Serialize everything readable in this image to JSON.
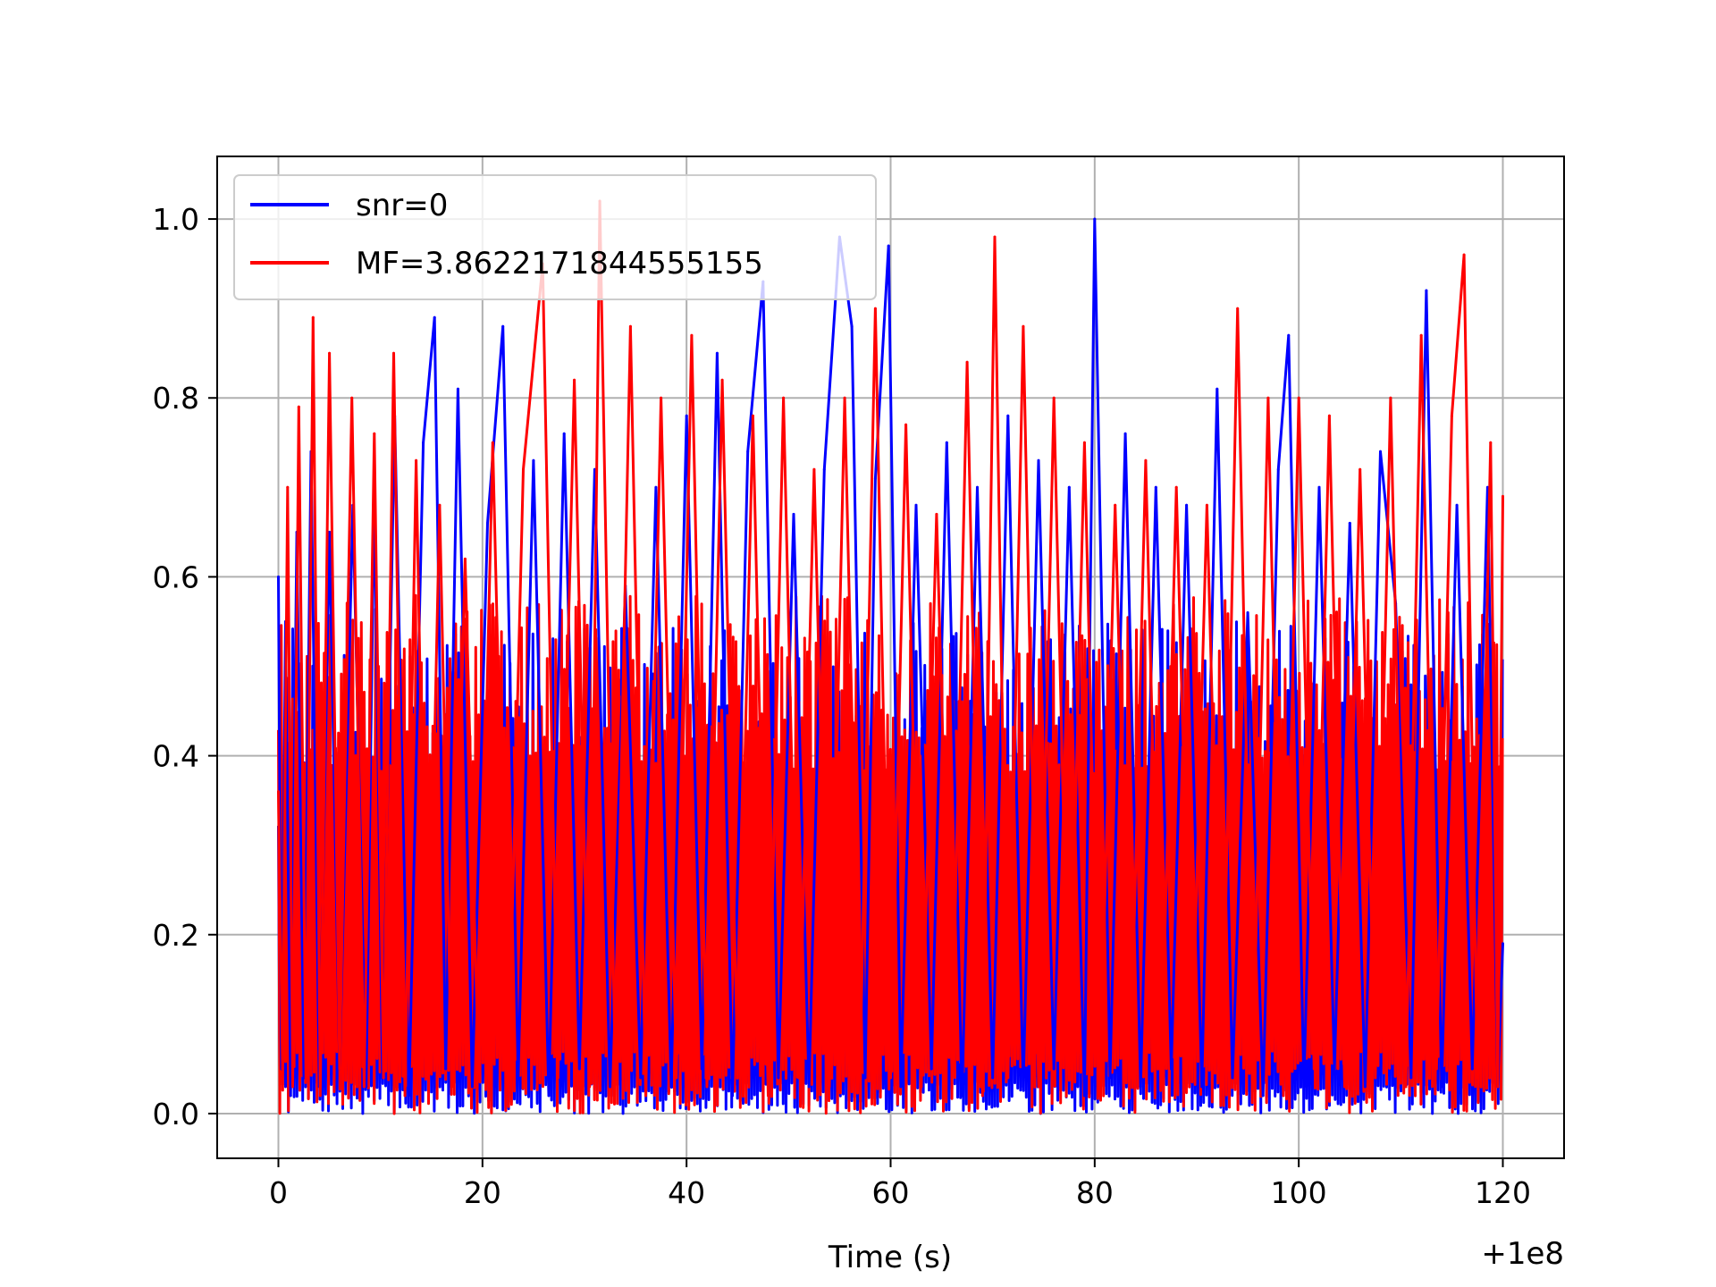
{
  "chart_data": {
    "type": "line",
    "title": "",
    "xlabel": "Time (s)",
    "ylabel": "",
    "x_offset_label": "+1e8",
    "xlim": [
      -6,
      126
    ],
    "ylim": [
      -0.05,
      1.07
    ],
    "xticks": [
      {
        "value": 0,
        "label": "0"
      },
      {
        "value": 20,
        "label": "20"
      },
      {
        "value": 40,
        "label": "40"
      },
      {
        "value": 60,
        "label": "60"
      },
      {
        "value": 80,
        "label": "80"
      },
      {
        "value": 100,
        "label": "100"
      },
      {
        "value": 120,
        "label": "120"
      }
    ],
    "yticks": [
      {
        "value": 0.0,
        "label": "0.0"
      },
      {
        "value": 0.2,
        "label": "0.2"
      },
      {
        "value": 0.4,
        "label": "0.4"
      },
      {
        "value": 0.6,
        "label": "0.6"
      },
      {
        "value": 0.8,
        "label": "0.8"
      },
      {
        "value": 1.0,
        "label": "1.0"
      }
    ],
    "grid": true,
    "legend_position": "top-left",
    "series": [
      {
        "name": "snr=0",
        "color": "#0000ff",
        "x": [
          0,
          0.3,
          0.7,
          1.2,
          1.8,
          2.5,
          3.2,
          4.0,
          5.0,
          6.0,
          7.3,
          8.6,
          9.4,
          10.2,
          11.4,
          12.8,
          14.2,
          15.3,
          16.4,
          17.6,
          19.0,
          20.5,
          22.0,
          23.5,
          25.0,
          26.5,
          28.0,
          29.5,
          31.0,
          32.5,
          34.0,
          35.5,
          37.0,
          38.5,
          40.0,
          41.5,
          43.0,
          44.5,
          46.0,
          47.5,
          49.0,
          50.5,
          52.0,
          53.5,
          55.0,
          56.2,
          57.5,
          58.5,
          59.8,
          61.0,
          62.5,
          64.0,
          65.5,
          67.0,
          68.5,
          70.0,
          71.5,
          73.0,
          74.5,
          76.0,
          77.5,
          79.0,
          80.0,
          81.5,
          83.0,
          84.5,
          86.0,
          87.5,
          89.0,
          90.5,
          92.0,
          93.5,
          95.0,
          96.5,
          98.0,
          99.0,
          100.5,
          102.0,
          103.5,
          105.0,
          106.5,
          108.0,
          109.5,
          111.0,
          112.5,
          114.0,
          115.5,
          117.0,
          118.5,
          119.5,
          120.0
        ],
        "y": [
          0.6,
          0.05,
          0.55,
          0.02,
          0.65,
          0.04,
          0.74,
          0.03,
          0.65,
          0.05,
          0.68,
          0.03,
          0.7,
          0.04,
          0.78,
          0.02,
          0.75,
          0.89,
          0.05,
          0.81,
          0.03,
          0.66,
          0.88,
          0.04,
          0.73,
          0.02,
          0.76,
          0.05,
          0.72,
          0.03,
          0.59,
          0.04,
          0.7,
          0.03,
          0.78,
          0.05,
          0.85,
          0.02,
          0.74,
          0.93,
          0.04,
          0.67,
          0.03,
          0.72,
          0.98,
          0.88,
          0.04,
          0.71,
          0.97,
          0.03,
          0.68,
          0.05,
          0.75,
          0.02,
          0.7,
          0.04,
          0.78,
          0.03,
          0.73,
          0.05,
          0.7,
          0.02,
          1.0,
          0.04,
          0.76,
          0.03,
          0.7,
          0.05,
          0.68,
          0.03,
          0.81,
          0.04,
          0.56,
          0.02,
          0.72,
          0.87,
          0.03,
          0.7,
          0.05,
          0.66,
          0.03,
          0.74,
          0.57,
          0.04,
          0.92,
          0.03,
          0.68,
          0.05,
          0.7,
          0.03,
          0.19
        ]
      },
      {
        "name": "MF=3.8622171844555155",
        "color": "#ff0000",
        "x": [
          0,
          0.4,
          0.9,
          1.4,
          2.0,
          2.7,
          3.4,
          4.1,
          5.0,
          6.0,
          7.2,
          8.4,
          9.4,
          10.3,
          11.3,
          12.4,
          13.5,
          14.6,
          15.8,
          17.0,
          18.3,
          19.6,
          21.0,
          22.5,
          24.0,
          25.9,
          27.4,
          29.0,
          30.5,
          31.5,
          33.0,
          34.5,
          36.0,
          37.5,
          39.0,
          40.5,
          42.0,
          43.5,
          45.0,
          46.5,
          48.0,
          49.5,
          51.0,
          52.5,
          54.0,
          55.5,
          57.0,
          58.5,
          60.0,
          61.5,
          63.0,
          64.5,
          66.0,
          67.5,
          69.0,
          70.2,
          71.5,
          73.0,
          74.5,
          76.0,
          77.5,
          79.0,
          80.5,
          82.0,
          83.5,
          85.0,
          86.5,
          88.0,
          89.5,
          91.0,
          92.5,
          94.0,
          95.5,
          97.0,
          98.5,
          100.0,
          101.5,
          103.0,
          104.5,
          106.0,
          107.5,
          109.0,
          110.5,
          112.0,
          113.5,
          115.0,
          116.2,
          117.5,
          118.8,
          119.5,
          120.0
        ],
        "y": [
          0.36,
          0.05,
          0.7,
          0.03,
          0.79,
          0.04,
          0.89,
          0.02,
          0.85,
          0.05,
          0.8,
          0.03,
          0.76,
          0.04,
          0.85,
          0.02,
          0.73,
          0.04,
          0.68,
          0.03,
          0.62,
          0.05,
          0.75,
          0.03,
          0.72,
          0.95,
          0.04,
          0.82,
          0.03,
          1.02,
          0.05,
          0.88,
          0.02,
          0.8,
          0.04,
          0.87,
          0.03,
          0.82,
          0.05,
          0.78,
          0.02,
          0.8,
          0.04,
          0.72,
          0.03,
          0.8,
          0.05,
          0.9,
          0.04,
          0.77,
          0.03,
          0.67,
          0.05,
          0.84,
          0.02,
          0.98,
          0.04,
          0.88,
          0.03,
          0.8,
          0.05,
          0.75,
          0.02,
          0.68,
          0.04,
          0.73,
          0.03,
          0.7,
          0.05,
          0.68,
          0.03,
          0.9,
          0.04,
          0.8,
          0.02,
          0.8,
          0.05,
          0.78,
          0.03,
          0.72,
          0.04,
          0.8,
          0.03,
          0.87,
          0.05,
          0.78,
          0.96,
          0.04,
          0.75,
          0.03,
          0.69
        ]
      }
    ]
  }
}
